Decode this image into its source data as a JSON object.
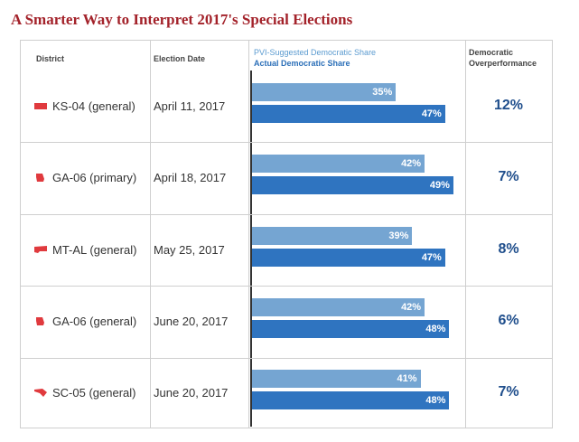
{
  "title": "A Smarter Way to Interpret 2017's Special Elections",
  "headers": {
    "district": "District",
    "date": "Election Date",
    "pvi": "PVI-Suggested Democratic Share",
    "actual": "Actual Democratic Share",
    "over_1": "Democratic",
    "over_2": "Overperformance"
  },
  "colors": {
    "title": "#a3222a",
    "pvi_bar": "#75a5d2",
    "actual_bar": "#2f74c0",
    "overperformance": "#1f4e8c",
    "state_shape": "#e03a3e"
  },
  "chart_data": {
    "type": "bar",
    "title": "A Smarter Way to Interpret 2017's Special Elections",
    "categories": [
      "KS-04 (general)",
      "GA-06 (primary)",
      "MT-AL (general)",
      "GA-06 (general)",
      "SC-05 (general)"
    ],
    "dates": [
      "April 11, 2017",
      "April 18, 2017",
      "May 25, 2017",
      "June 20, 2017",
      "June 20, 2017"
    ],
    "states": [
      "KS",
      "GA",
      "MT",
      "GA",
      "SC"
    ],
    "series": [
      {
        "name": "PVI-Suggested Democratic Share",
        "values": [
          35,
          42,
          39,
          42,
          41
        ],
        "labels": [
          "35%",
          "42%",
          "39%",
          "42%",
          "41%"
        ]
      },
      {
        "name": "Actual Democratic Share",
        "values": [
          47,
          49,
          47,
          48,
          48
        ],
        "labels": [
          "47%",
          "49%",
          "47%",
          "48%",
          "48%"
        ]
      }
    ],
    "overperformance": [
      "12%",
      "7%",
      "8%",
      "6%",
      "7%"
    ],
    "xlim": [
      0,
      50
    ]
  }
}
